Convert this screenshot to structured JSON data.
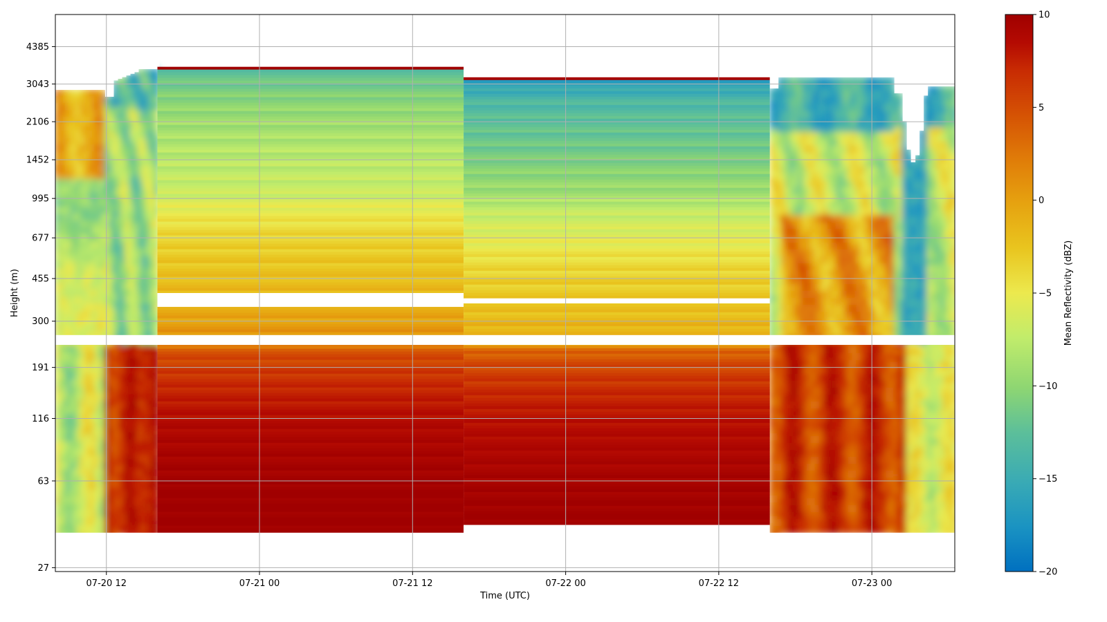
{
  "chart_data": {
    "type": "heatmap",
    "title": "",
    "xlabel": "Time (UTC)",
    "ylabel": "Height (m)",
    "x_ticks": [
      {
        "time": "2024-07-20T12:00",
        "label": "07-20 12"
      },
      {
        "time": "2024-07-21T00:00",
        "label": "07-21 00"
      },
      {
        "time": "2024-07-21T12:00",
        "label": "07-21 12"
      },
      {
        "time": "2024-07-22T00:00",
        "label": "07-22 00"
      },
      {
        "time": "2024-07-22T12:00",
        "label": "07-22 12"
      },
      {
        "time": "2024-07-23T00:00",
        "label": "07-23 00"
      }
    ],
    "xlim": [
      "2024-07-20T08:00",
      "2024-07-23T06:30"
    ],
    "y_scale": "log",
    "y_ticks": [
      27,
      63,
      116,
      191,
      300,
      455,
      677,
      995,
      1452,
      2106,
      3043,
      4385
    ],
    "ylim": [
      26,
      6000
    ],
    "grid": true,
    "colorbar": {
      "label": "Mean Reflectivity (dBZ)",
      "min": -20,
      "max": 10,
      "ticks": [
        -20,
        -15,
        -10,
        -5,
        0,
        5,
        10
      ],
      "colormap": [
        "#0070c0",
        "#1a93c2",
        "#39aab5",
        "#5cbf9a",
        "#8ed672",
        "#c1ec6b",
        "#ece94e",
        "#e9c51f",
        "#e6a310",
        "#e07c08",
        "#d55204",
        "#c82b03",
        "#b40a02",
        "#a00000"
      ]
    },
    "segments": [
      {
        "name": "",
        "start": "2024-07-20T16:00",
        "end": "2024-07-21T16:00",
        "top_m": 3600,
        "bottom_m": 38,
        "profile": [
          [
            3500,
            -13
          ],
          [
            3000,
            -12
          ],
          [
            2600,
            -11
          ],
          [
            2100,
            -10
          ],
          [
            1600,
            -9
          ],
          [
            1300,
            -8.5
          ],
          [
            1050,
            -8
          ],
          [
            900,
            -6.5
          ],
          [
            700,
            -5
          ],
          [
            550,
            -4
          ],
          [
            450,
            -3.5
          ],
          [
            360,
            -2.5
          ],
          [
            300,
            -1.5
          ],
          [
            240,
            0
          ],
          [
            225,
            3
          ],
          [
            200,
            4
          ],
          [
            150,
            6
          ],
          [
            110,
            8
          ],
          [
            80,
            9
          ],
          [
            55,
            10
          ],
          [
            38,
            10
          ]
        ],
        "gaps_m": [
          [
            345,
            395
          ]
        ]
      },
      {
        "name": "",
        "start": "2024-07-21T16:00",
        "end": "2024-07-22T16:00",
        "top_m": 3250,
        "bottom_m": 41,
        "profile": [
          [
            3200,
            -17
          ],
          [
            3000,
            -16
          ],
          [
            2600,
            -14
          ],
          [
            2100,
            -13
          ],
          [
            1600,
            -12
          ],
          [
            1300,
            -11
          ],
          [
            1050,
            -10
          ],
          [
            900,
            -8.5
          ],
          [
            700,
            -7
          ],
          [
            550,
            -5.5
          ],
          [
            450,
            -4.5
          ],
          [
            360,
            -4
          ],
          [
            300,
            -3
          ],
          [
            240,
            -2
          ],
          [
            225,
            2
          ],
          [
            200,
            3.5
          ],
          [
            150,
            5.5
          ],
          [
            110,
            7.5
          ],
          [
            80,
            8.5
          ],
          [
            55,
            9.5
          ],
          [
            41,
            10
          ]
        ],
        "gaps_m": [
          [
            357,
            375
          ]
        ]
      }
    ],
    "missing_band_m": [
      238,
      262
    ]
  }
}
